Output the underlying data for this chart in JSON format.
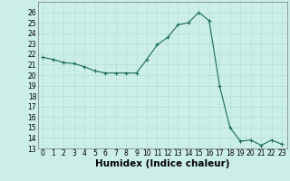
{
  "x": [
    0,
    1,
    2,
    3,
    4,
    5,
    6,
    7,
    8,
    9,
    10,
    11,
    12,
    13,
    14,
    15,
    16,
    17,
    18,
    19,
    20,
    21,
    22,
    23
  ],
  "y": [
    21.7,
    21.5,
    21.2,
    21.1,
    20.8,
    20.4,
    20.2,
    20.2,
    20.2,
    20.2,
    21.5,
    22.9,
    23.6,
    24.8,
    25.0,
    26.0,
    25.2,
    19.0,
    15.0,
    13.7,
    13.8,
    13.3,
    13.8,
    13.4
  ],
  "line_color": "#1a6b5a",
  "marker": "+",
  "marker_size": 3,
  "background_color": "#cceee8",
  "grid_color": "#aaddcc",
  "xlabel": "Humidex (Indice chaleur)",
  "ylabel": "",
  "xlim": [
    -0.5,
    23.5
  ],
  "ylim": [
    13,
    27
  ],
  "yticks": [
    13,
    14,
    15,
    16,
    17,
    18,
    19,
    20,
    21,
    22,
    23,
    24,
    25,
    26
  ],
  "xticks": [
    0,
    1,
    2,
    3,
    4,
    5,
    6,
    7,
    8,
    9,
    10,
    11,
    12,
    13,
    14,
    15,
    16,
    17,
    18,
    19,
    20,
    21,
    22,
    23
  ],
  "xlabel_fontsize": 7.5,
  "tick_fontsize": 5.5,
  "linewidth": 0.8
}
